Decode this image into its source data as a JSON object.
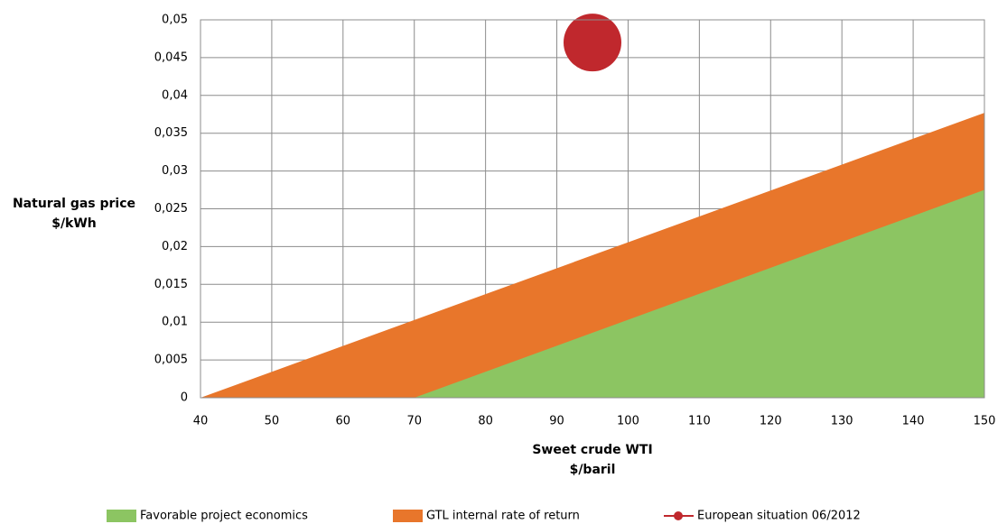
{
  "chart_data": {
    "type": "area",
    "x_label": [
      "Sweet crude WTI",
      "$/baril"
    ],
    "y_label": [
      "Natural gas price",
      "$/kWh"
    ],
    "xlim": [
      40,
      150
    ],
    "xticks": [
      40,
      50,
      60,
      70,
      80,
      90,
      100,
      110,
      120,
      130,
      140,
      150
    ],
    "ylim": [
      0,
      0.05
    ],
    "yticks": [
      0,
      {
        "value": 0.005,
        "label": "0,005"
      },
      {
        "value": 0.01,
        "label": "0,01"
      },
      {
        "value": 0.015,
        "label": "0,015"
      },
      {
        "value": 0.02,
        "label": "0,02"
      },
      {
        "value": 0.025,
        "label": "0,025"
      },
      {
        "value": 0.03,
        "label": "0,03"
      },
      {
        "value": 0.035,
        "label": "0,035"
      },
      {
        "value": 0.04,
        "label": "0,04"
      },
      {
        "value": 0.045,
        "label": "0,045"
      },
      {
        "value": 0.05,
        "label": "0,05"
      }
    ],
    "grid": true,
    "legend": "bottom",
    "series": [
      {
        "name": "Favorable project economics",
        "type": "area",
        "color": "#8cc562",
        "x": [
          70,
          150
        ],
        "values": [
          0,
          0.0275
        ]
      },
      {
        "name": "GTL internal rate of return",
        "type": "area",
        "color": "#e8762b",
        "x": [
          40,
          150
        ],
        "values": [
          0,
          0.0377
        ]
      },
      {
        "name": "European situation 06/2012",
        "type": "scatter",
        "color": "#c0282d",
        "x": [
          95
        ],
        "values": [
          0.047
        ]
      }
    ]
  }
}
